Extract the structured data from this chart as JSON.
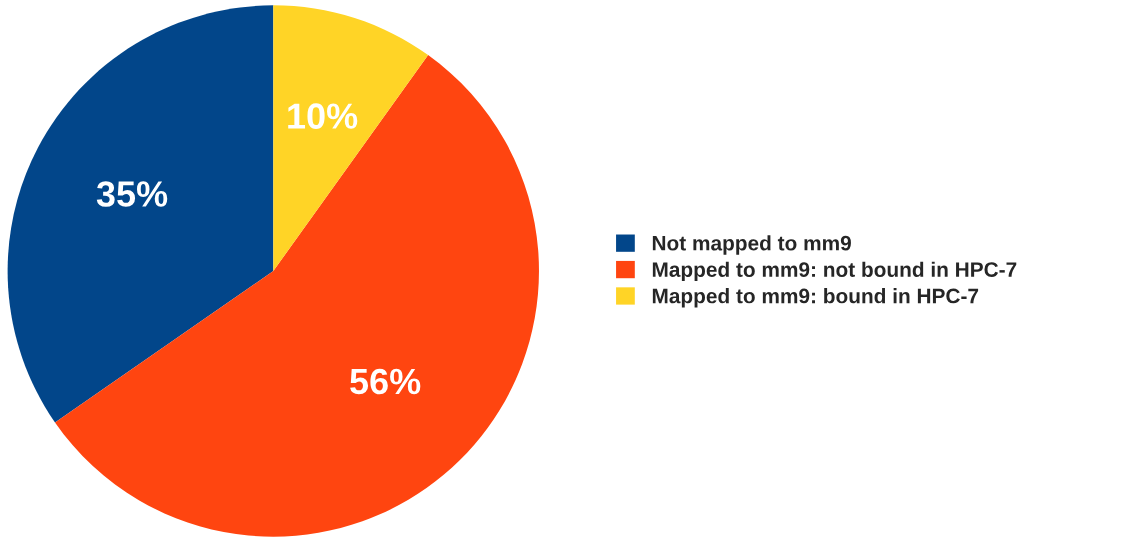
{
  "chart_data": {
    "type": "pie",
    "categories": [
      "Not mapped to mm9",
      "Mapped to mm9: not bound in HPC-7",
      "Mapped to mm9: bound in HPC-7"
    ],
    "values": [
      35,
      56,
      10
    ],
    "colors": [
      "#02468a",
      "#ff4510",
      "#ffd426"
    ],
    "value_labels": [
      "35%",
      "56%",
      "10%"
    ],
    "legend": "right"
  }
}
